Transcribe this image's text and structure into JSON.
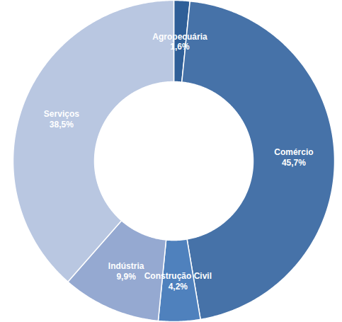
{
  "chart_data": {
    "type": "pie",
    "categories": [
      "Agropecuária",
      "Comércio",
      "Construção Civil",
      "Indústria",
      "Serviços"
    ],
    "values": [
      1.6,
      45.7,
      4.2,
      9.9,
      38.5
    ],
    "value_labels": [
      "1,6%",
      "45,7%",
      "4,2%",
      "9,9%",
      "38,5%"
    ],
    "colors": [
      "#2f5f98",
      "#4672a8",
      "#4f81bd",
      "#95a9d1",
      "#b9c7e1"
    ],
    "data_labels": true
  }
}
